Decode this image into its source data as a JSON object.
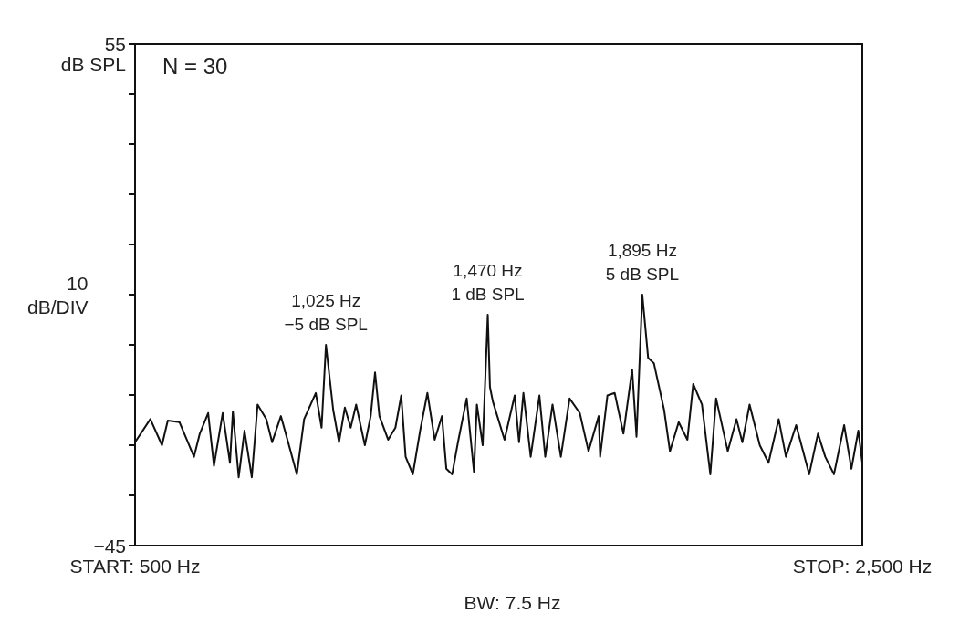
{
  "chart_data": {
    "type": "line",
    "ylabel": "10\ndB/DIV",
    "series": [
      {
        "color": "#111111",
        "x": [
          500,
          542,
          574,
          590,
          622,
          662,
          678,
          701,
          717,
          741,
          761,
          769,
          785,
          801,
          821,
          837,
          861,
          877,
          901,
          921,
          945,
          965,
          997,
          1013,
          1025,
          1045,
          1061,
          1077,
          1093,
          1108,
          1132,
          1148,
          1160,
          1172,
          1196,
          1216,
          1232,
          1244,
          1264,
          1284,
          1304,
          1324,
          1344,
          1356,
          1372,
          1388,
          1412,
          1432,
          1440,
          1456,
          1470,
          1476,
          1484,
          1516,
          1544,
          1556,
          1568,
          1588,
          1612,
          1628,
          1648,
          1671,
          1695,
          1723,
          1747,
          1775,
          1779,
          1799,
          1819,
          1843,
          1867,
          1879,
          1895,
          1911,
          1927,
          1955,
          1971,
          1995,
          2019,
          2035,
          2059,
          2082,
          2098,
          2130,
          2154,
          2170,
          2190,
          2218,
          2242,
          2270,
          2290,
          2318,
          2354,
          2378,
          2398,
          2422,
          2450,
          2470,
          2489,
          2500
        ],
        "values": [
          -24.4,
          -19.8,
          -25.0,
          -20.1,
          -20.4,
          -27.3,
          -22.7,
          -18.6,
          -29.1,
          -18.6,
          -28.5,
          -18.3,
          -31.4,
          -22.1,
          -31.4,
          -16.9,
          -19.8,
          -24.4,
          -19.2,
          -24.4,
          -30.8,
          -19.8,
          -14.6,
          -21.5,
          -5,
          -18.0,
          -24.4,
          -17.5,
          -21.5,
          -16.9,
          -25.0,
          -19.2,
          -10.5,
          -19.2,
          -23.9,
          -21.5,
          -15.1,
          -27.3,
          -30.8,
          -22.1,
          -14.6,
          -23.9,
          -19.2,
          -29.7,
          -30.8,
          -24.4,
          -15.7,
          -30.3,
          -16.9,
          -25.0,
          1,
          -13.4,
          -16.3,
          -23.9,
          -15.1,
          -24.4,
          -14.6,
          -27.3,
          -15.1,
          -27.3,
          -16.9,
          -27.3,
          -15.7,
          -18.6,
          -26.2,
          -19.2,
          -27.3,
          -15.1,
          -14.6,
          -22.7,
          -9.9,
          -23.3,
          5,
          -7.6,
          -8.7,
          -18.0,
          -26.2,
          -20.4,
          -23.9,
          -12.8,
          -16.9,
          -30.8,
          -15.7,
          -26.2,
          -19.8,
          -24.4,
          -16.9,
          -25.0,
          -28.5,
          -19.8,
          -27.3,
          -21.0,
          -30.8,
          -22.7,
          -27.3,
          -30.8,
          -21.0,
          -29.7,
          -22.1,
          -28.5
        ]
      }
    ],
    "xlim": [
      500,
      2500
    ],
    "ylim": [
      -45,
      55
    ],
    "xticks": [
      {
        "value": 500,
        "label": "START: 500 Hz"
      },
      {
        "value": 2500,
        "label": "STOP: 2,500 Hz"
      }
    ],
    "yticks": [
      55,
      {
        "value": 45,
        "label": null
      },
      {
        "value": 35,
        "label": null
      },
      {
        "value": 25,
        "label": null
      },
      {
        "value": 15,
        "label": null
      },
      {
        "value": 5,
        "label": null
      },
      {
        "value": -5,
        "label": null
      },
      {
        "value": -15,
        "label": null
      },
      {
        "value": -25,
        "label": null
      },
      {
        "value": -35,
        "label": null
      },
      {
        "value": -45,
        "label": "−45"
      }
    ],
    "grid": false,
    "marker": "none",
    "line_style": "solid",
    "annotations": [
      "N = 30",
      "dB SPL",
      "BW: 7.5 Hz",
      {
        "text": "1,025 Hz\n−5 dB SPL",
        "x": 1025,
        "y": -5
      },
      {
        "text": "1,470 Hz\n1 dB SPL",
        "x": 1470,
        "y": 1
      },
      {
        "text": "1,895 Hz\n5 dB SPL",
        "x": 1895,
        "y": 5
      }
    ]
  }
}
